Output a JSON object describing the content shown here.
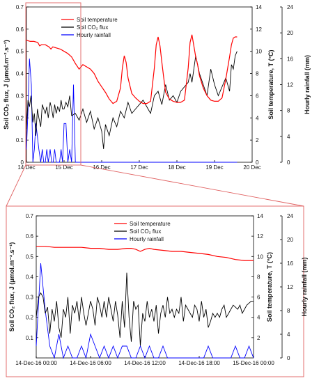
{
  "chart_data": [
    {
      "type": "line",
      "panel": "top",
      "x_ticks": [
        "14 Dec",
        "15 Dec",
        "16 Dec",
        "17 Dec",
        "18 Dec",
        "19 Dec",
        "20 Dec"
      ],
      "xlim_days": [
        0,
        6
      ],
      "y_left": {
        "label": "Soil CO₂ flux, J (μmol.m⁻².s⁻¹)",
        "range": [
          0,
          0.7
        ],
        "ticks": [
          "0",
          "0.1",
          "0.2",
          "0.3",
          "0.4",
          "0.5",
          "0.6",
          "0.7"
        ]
      },
      "y_right1": {
        "label": "Soil temperature, T (°C)",
        "range": [
          0,
          14
        ],
        "ticks": [
          "0",
          "2",
          "4",
          "6",
          "8",
          "10",
          "12",
          "14"
        ]
      },
      "y_right2": {
        "label": "Hourly rainfall (mm)",
        "range": [
          0,
          24
        ],
        "ticks": [
          "0",
          "4",
          "8",
          "12",
          "16",
          "20",
          "24"
        ]
      },
      "legend": {
        "placement": "top-left",
        "entries": [
          "Soil temperature",
          "Soil CO₂ flux",
          "Hourly rainfall"
        ]
      },
      "series": [
        {
          "name": "Soil temperature",
          "color": "#ff0000",
          "axis": "right1",
          "x": [
            0,
            0.1,
            0.2,
            0.3,
            0.35,
            0.4,
            0.5,
            0.6,
            0.65,
            0.7,
            0.8,
            0.9,
            1.0,
            1.1,
            1.2,
            1.3,
            1.4,
            1.5,
            1.6,
            1.7,
            1.8,
            1.9,
            2.0,
            2.1,
            2.2,
            2.3,
            2.4,
            2.5,
            2.55,
            2.6,
            2.65,
            2.7,
            2.8,
            2.9,
            3.0,
            3.1,
            3.2,
            3.3,
            3.4,
            3.45,
            3.5,
            3.55,
            3.6,
            3.65,
            3.7,
            3.8,
            3.9,
            4.0,
            4.1,
            4.2,
            4.3,
            4.35,
            4.4,
            4.45,
            4.5,
            4.55,
            4.6,
            4.7,
            4.8,
            4.9,
            5.0,
            5.1,
            5.2,
            5.3,
            5.4,
            5.45,
            5.5,
            5.55,
            5.6
          ],
          "values": [
            11.0,
            10.9,
            10.9,
            10.8,
            10.5,
            10.6,
            10.6,
            10.4,
            10.2,
            10.4,
            10.3,
            10.2,
            10.0,
            9.8,
            9.5,
            8.9,
            8.4,
            8.8,
            8.6,
            8.4,
            8.0,
            7.3,
            6.8,
            6.3,
            5.7,
            5.3,
            5.5,
            6.7,
            8.5,
            9.6,
            9.0,
            7.6,
            6.2,
            5.8,
            5.5,
            5.3,
            5.3,
            5.5,
            8.5,
            10.6,
            11.3,
            10.5,
            9.0,
            7.6,
            6.3,
            5.7,
            5.5,
            5.4,
            5.4,
            5.6,
            8.5,
            10.8,
            11.5,
            10.5,
            9.5,
            8.8,
            7.8,
            6.7,
            6.0,
            5.6,
            5.5,
            5.5,
            5.8,
            7.5,
            9.5,
            10.6,
            11.2,
            11.3,
            11.3
          ]
        },
        {
          "name": "Soil CO₂ flux",
          "color": "#000000",
          "axis": "left",
          "x": [
            0,
            0.04,
            0.08,
            0.12,
            0.17,
            0.21,
            0.25,
            0.29,
            0.33,
            0.38,
            0.42,
            0.46,
            0.5,
            0.54,
            0.58,
            0.63,
            0.67,
            0.71,
            0.75,
            0.79,
            0.83,
            0.88,
            0.92,
            0.96,
            1.0,
            1.05,
            1.1,
            1.15,
            1.2,
            1.3,
            1.4,
            1.5,
            1.6,
            1.7,
            1.8,
            1.9,
            2.0,
            2.05,
            2.1,
            2.2,
            2.3,
            2.4,
            2.5,
            2.6,
            2.7,
            2.8,
            2.9,
            3.0,
            3.1,
            3.2,
            3.3,
            3.4,
            3.5,
            3.6,
            3.7,
            3.8,
            3.9,
            4.0,
            4.1,
            4.2,
            4.3,
            4.35,
            4.4,
            4.5,
            4.6,
            4.7,
            4.8,
            4.9,
            5.0,
            5.1,
            5.2,
            5.3,
            5.4,
            5.45,
            5.5,
            5.55,
            5.6
          ],
          "values": [
            0.15,
            0.28,
            0.25,
            0.3,
            0.18,
            0.22,
            0.12,
            0.24,
            0.2,
            0.16,
            0.26,
            0.24,
            0.22,
            0.25,
            0.2,
            0.27,
            0.24,
            0.2,
            0.26,
            0.22,
            0.25,
            0.23,
            0.28,
            0.24,
            0.24,
            0.27,
            0.25,
            0.3,
            0.21,
            0.22,
            0.19,
            0.24,
            0.18,
            0.23,
            0.15,
            0.2,
            0.14,
            0.06,
            0.17,
            0.12,
            0.2,
            0.16,
            0.23,
            0.2,
            0.27,
            0.22,
            0.24,
            0.26,
            0.28,
            0.25,
            0.22,
            0.3,
            0.32,
            0.26,
            0.35,
            0.28,
            0.3,
            0.27,
            0.32,
            0.34,
            0.36,
            0.4,
            0.36,
            0.48,
            0.4,
            0.35,
            0.3,
            0.42,
            0.35,
            0.3,
            0.34,
            0.38,
            0.32,
            0.44,
            0.42,
            0.48,
            0.5
          ]
        },
        {
          "name": "Hourly rainfall",
          "color": "#0000ff",
          "axis": "right2",
          "x": [
            0,
            0.04,
            0.08,
            0.13,
            0.17,
            0.21,
            0.25,
            0.29,
            0.33,
            0.38,
            0.42,
            0.46,
            0.5,
            0.54,
            0.58,
            0.63,
            0.67,
            0.71,
            0.75,
            0.79,
            0.83,
            0.88,
            0.92,
            0.96,
            1.0,
            1.05,
            1.1,
            1.15,
            1.2,
            1.25,
            1.3,
            5.6
          ],
          "values": [
            2,
            8,
            16,
            12,
            0,
            2,
            6,
            4,
            2,
            0,
            2,
            0,
            0,
            2,
            0,
            2,
            0,
            0,
            2,
            0,
            0,
            0,
            2,
            0,
            6,
            6,
            0,
            2,
            0,
            12,
            0,
            0
          ]
        }
      ]
    },
    {
      "type": "line",
      "panel": "bottom",
      "x_ticks": [
        "14-Dec-16 00:00",
        "14-Dec-16 06:00",
        "14-Dec-16 12:00",
        "14-Dec-16 18:00",
        "15-Dec-16 00:00"
      ],
      "xlim_hours": [
        0,
        24
      ],
      "y_left": {
        "label": "Soil CO₂ flux, J (μmol.m⁻².s⁻¹)",
        "range": [
          0,
          0.7
        ],
        "ticks": [
          "0.1",
          "0.2",
          "0.3",
          "0.4",
          "0.5",
          "0.6",
          "0.7"
        ]
      },
      "y_right1": {
        "label": "Soil temperature, T (°C)",
        "range": [
          0,
          14
        ],
        "ticks": [
          "2",
          "4",
          "6",
          "8",
          "10",
          "12",
          "14"
        ]
      },
      "y_right2": {
        "label": "Hourly rainfall (mm)",
        "range": [
          0,
          24
        ],
        "ticks": [
          "0",
          "4",
          "8",
          "12",
          "16",
          "20",
          "24"
        ]
      },
      "legend": {
        "placement": "top-center",
        "entries": [
          "Soil temperature",
          "Soil CO₂ flux",
          "Hourly rainfall"
        ]
      },
      "series": [
        {
          "name": "Soil temperature",
          "color": "#ff0000",
          "axis": "right1",
          "x": [
            0,
            1,
            2,
            3,
            4,
            5,
            6,
            7,
            8,
            9,
            10,
            10.5,
            11,
            11.5,
            12,
            12.5,
            13,
            14,
            15,
            16,
            17,
            18,
            19,
            20,
            21,
            22,
            23,
            24
          ],
          "values": [
            11.0,
            11.0,
            10.9,
            10.9,
            10.9,
            10.9,
            10.8,
            10.8,
            10.7,
            10.7,
            10.8,
            10.8,
            10.7,
            10.5,
            10.7,
            10.8,
            10.7,
            10.6,
            10.5,
            10.5,
            10.4,
            10.3,
            10.2,
            10.0,
            9.9,
            9.7,
            9.6,
            9.6
          ]
        },
        {
          "name": "Soil CO₂ flux",
          "color": "#000000",
          "axis": "left",
          "x": [
            0,
            0.25,
            0.5,
            0.75,
            1,
            1.25,
            1.5,
            1.75,
            2,
            2.25,
            2.5,
            2.75,
            3,
            3.25,
            3.5,
            3.75,
            4,
            4.25,
            4.5,
            4.75,
            5,
            5.25,
            5.5,
            5.75,
            6,
            6.25,
            6.5,
            6.75,
            7,
            7.25,
            7.5,
            7.75,
            8,
            8.25,
            8.5,
            8.75,
            9,
            9.25,
            9.5,
            9.75,
            10,
            10.25,
            10.5,
            10.75,
            11,
            11.25,
            11.5,
            11.75,
            12,
            12.25,
            12.5,
            12.75,
            13,
            13.25,
            13.5,
            13.75,
            14,
            14.25,
            14.5,
            14.75,
            15,
            15.25,
            15.5,
            15.75,
            16,
            16.25,
            16.5,
            16.75,
            17,
            17.25,
            17.5,
            17.75,
            18,
            18.25,
            18.5,
            18.75,
            19,
            19.25,
            19.5,
            19.75,
            20,
            20.25,
            20.5,
            20.75,
            21,
            21.25,
            21.5,
            21.75,
            22,
            22.25,
            22.5,
            22.75,
            23,
            23.25,
            23.5,
            23.75,
            24
          ],
          "values": [
            0.2,
            0.3,
            0.32,
            0.3,
            0.22,
            0.25,
            0.12,
            0.24,
            0.18,
            0.28,
            0.15,
            0.1,
            0.24,
            0.2,
            0.3,
            0.12,
            0.26,
            0.22,
            0.28,
            0.18,
            0.3,
            0.22,
            0.16,
            0.22,
            0.28,
            0.24,
            0.16,
            0.3,
            0.26,
            0.2,
            0.28,
            0.2,
            0.3,
            0.24,
            0.18,
            0.28,
            0.21,
            0.1,
            0.28,
            0.15,
            0.42,
            0.2,
            0.08,
            0.28,
            0.24,
            0.26,
            0.06,
            0.22,
            0.18,
            0.28,
            0.2,
            0.24,
            0.18,
            0.26,
            0.12,
            0.22,
            0.26,
            0.2,
            0.3,
            0.22,
            0.24,
            0.2,
            0.24,
            0.22,
            0.3,
            0.18,
            0.26,
            0.24,
            0.22,
            0.2,
            0.26,
            0.24,
            0.18,
            0.28,
            0.2,
            0.24,
            0.15,
            0.18,
            0.22,
            0.2,
            0.22,
            0.2,
            0.24,
            0.26,
            0.2,
            0.22,
            0.24,
            0.26,
            0.25,
            0.24,
            0.26,
            0.22,
            0.24,
            0.26,
            0.27,
            0.28,
            0.28
          ]
        },
        {
          "name": "Hourly rainfall",
          "color": "#0000ff",
          "axis": "right2",
          "x": [
            0,
            0.5,
            1,
            1.5,
            2,
            2.5,
            3,
            3.5,
            4,
            4.5,
            5,
            5.5,
            6,
            6.5,
            7,
            7.5,
            8,
            8.5,
            9,
            9.5,
            10,
            10.5,
            11,
            11.5,
            12,
            12.5,
            13,
            13.5,
            14,
            14.5,
            15,
            15.5,
            16,
            16.5,
            17,
            17.5,
            18,
            18.5,
            19,
            19.5,
            20,
            20.5,
            21,
            21.5,
            22,
            22.5,
            23,
            23.5,
            24
          ],
          "values": [
            2,
            16,
            8,
            2,
            0,
            4,
            0,
            2,
            0,
            0,
            2,
            0,
            4,
            2,
            0,
            2,
            0,
            2,
            0,
            2,
            2,
            0,
            0,
            2,
            0,
            2,
            0,
            0,
            2,
            0,
            0,
            0,
            0,
            0,
            0,
            0,
            0,
            0,
            2,
            0,
            0,
            0,
            0,
            0,
            2,
            0,
            0,
            2,
            0
          ]
        }
      ]
    }
  ]
}
